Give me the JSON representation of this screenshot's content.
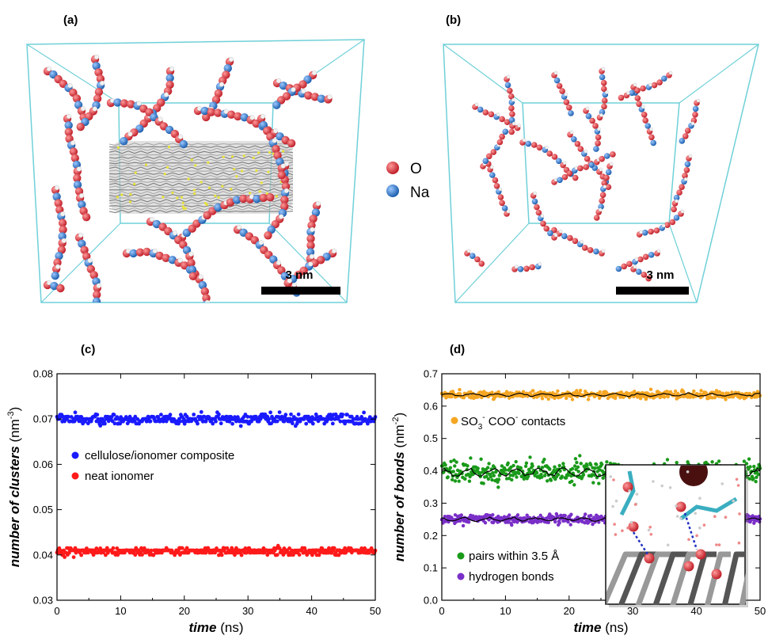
{
  "panels": {
    "a": {
      "label": "(a)",
      "scale_bar": "3 nm"
    },
    "b": {
      "label": "(b)",
      "scale_bar": "3 nm"
    },
    "c": {
      "label": "(c)"
    },
    "d": {
      "label": "(d)"
    }
  },
  "legend_atoms": [
    {
      "label": "O",
      "color": "#e0313a"
    },
    {
      "label": "Na",
      "color": "#2f7fd0"
    }
  ],
  "colors": {
    "box_edge": "#6fd0d8",
    "cellulose": "#9a9a9a",
    "sulfur": "#e8e23a"
  },
  "chart_data": [
    {
      "type": "scatter",
      "panel": "(c)",
      "xlabel_main": "time",
      "xlabel_unit": " (ns)",
      "ylabel_main": "number of clusters",
      "ylabel_unit": " (nm",
      "ylabel_sup": "-3",
      "ylabel_close": ")",
      "xlim": [
        0,
        50
      ],
      "ylim": [
        0.03,
        0.08
      ],
      "xticks": [
        "0",
        "10",
        "20",
        "30",
        "40",
        "50"
      ],
      "yticks": [
        "0.03",
        "0.04",
        "0.05",
        "0.06",
        "0.07",
        "0.08"
      ],
      "series": [
        {
          "name": "cellulose/ionomer composite",
          "color": "#1a1aff",
          "mean": 0.07,
          "spread": 0.0016
        },
        {
          "name": "neat ionomer",
          "color": "#ff1a1a",
          "mean": 0.0408,
          "spread": 0.001
        }
      ]
    },
    {
      "type": "scatter",
      "panel": "(d)",
      "xlabel_main": "time",
      "xlabel_unit": " (ns)",
      "ylabel_main": "number of bonds",
      "ylabel_unit": " (nm",
      "ylabel_sup": "-2",
      "ylabel_close": ")",
      "xlim": [
        0,
        50
      ],
      "ylim": [
        0.0,
        0.7
      ],
      "xticks": [
        "0",
        "10",
        "20",
        "30",
        "40",
        "50"
      ],
      "yticks": [
        "0.0",
        "0.1",
        "0.2",
        "0.3",
        "0.4",
        "0.5",
        "0.6",
        "0.7"
      ],
      "series": [
        {
          "name": "SO3- COO- contacts",
          "color": "#f5a623",
          "mean": 0.635,
          "spread": 0.015
        },
        {
          "name": "pairs within 3.5 Å",
          "color": "#1a9a1a",
          "mean": 0.395,
          "spread": 0.045
        },
        {
          "name": "hydrogen bonds",
          "color": "#7a2fc8",
          "mean": 0.25,
          "spread": 0.018
        }
      ],
      "legend_rich": {
        "so3": {
          "pre": "SO",
          "sub": "3",
          "sup1": "-",
          "mid": " COO",
          "sup2": "-",
          "post": " contacts"
        }
      }
    }
  ]
}
